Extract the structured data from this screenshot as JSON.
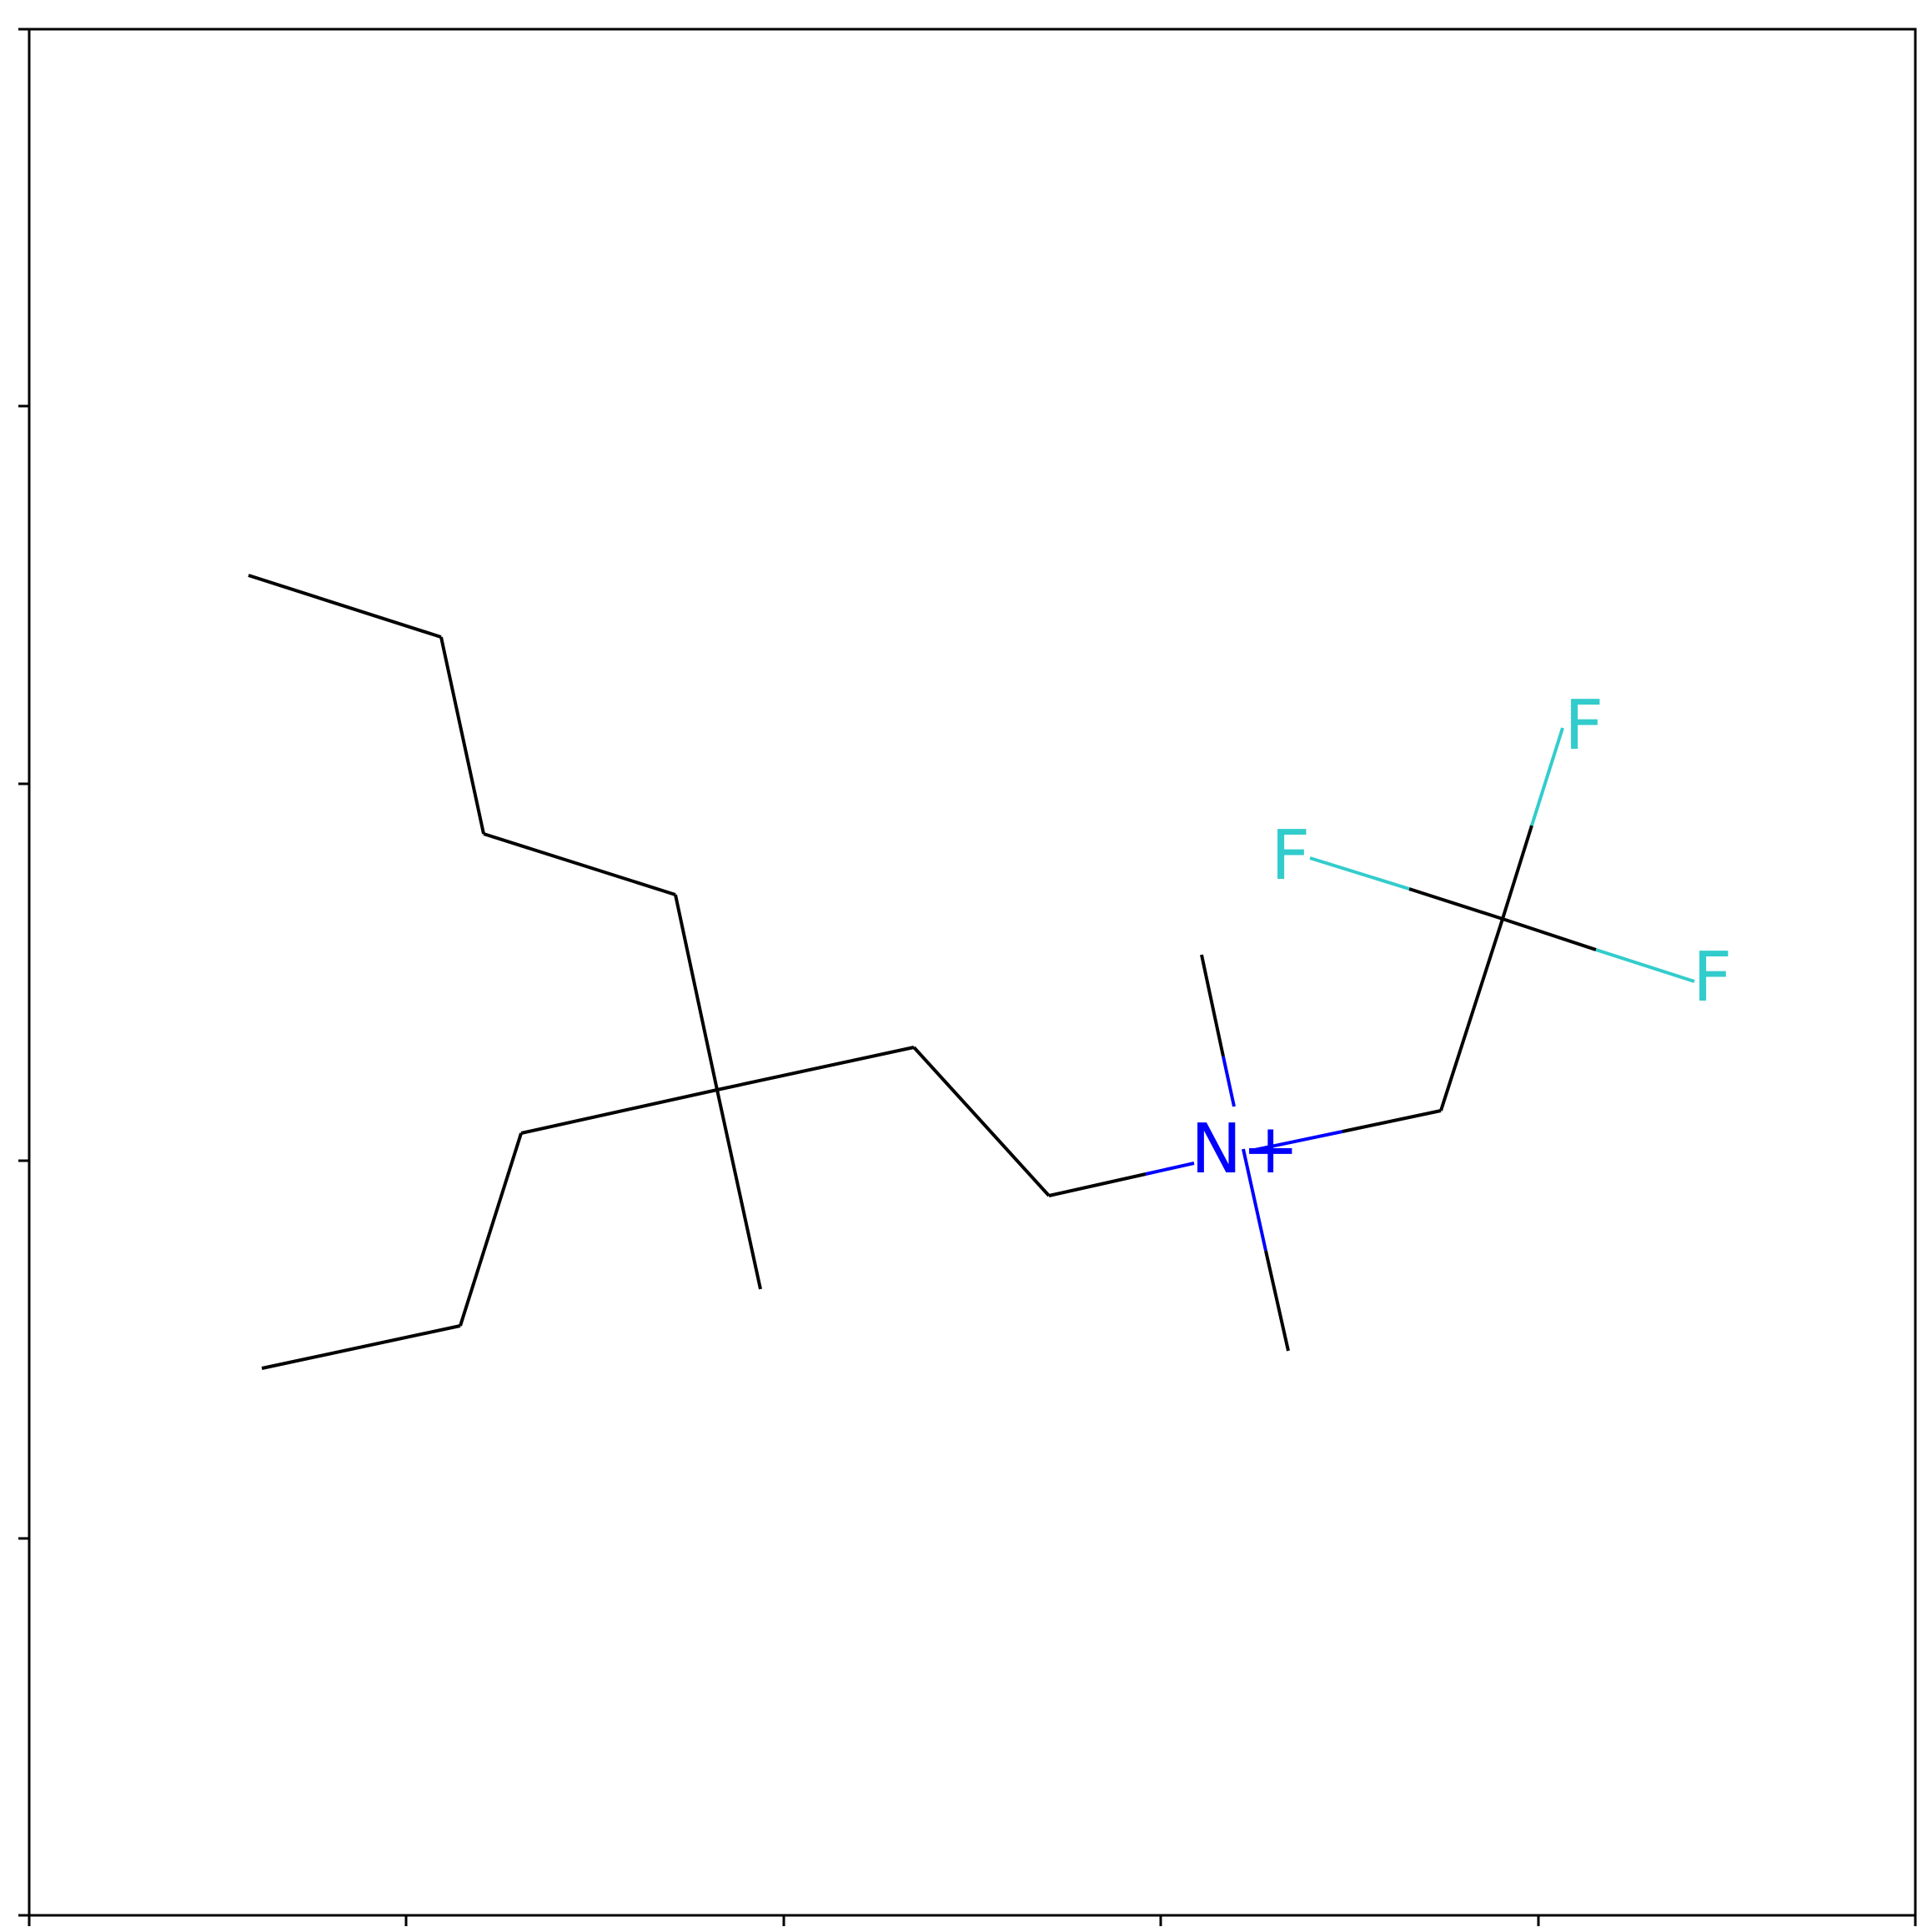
{
  "diagram": {
    "kind": "skeletal structural formula",
    "colors": {
      "bond": "#000000",
      "nitrogen": "#0000ff",
      "fluorine": "#33cccc",
      "frame": "#000000",
      "background": "#ffffff"
    },
    "atoms": {
      "nitrogen_label": "N+",
      "fluorine_label_1": "F",
      "fluorine_label_2": "F",
      "fluorine_label_3": "F"
    }
  }
}
